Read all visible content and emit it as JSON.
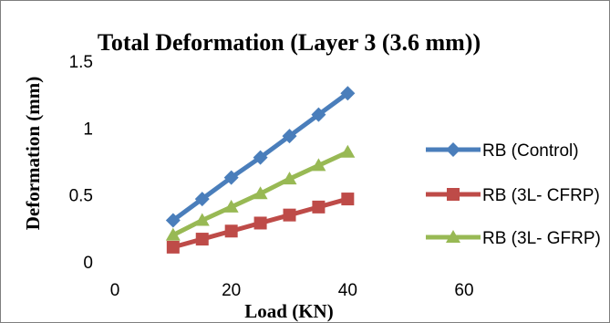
{
  "chart_data": {
    "type": "line",
    "title": "Total Deformation (Layer 3 (3.6 mm))",
    "xlabel": "Load (KN)",
    "ylabel": "Deformation (mm)",
    "xlim": [
      0,
      60
    ],
    "ylim": [
      0,
      1.5
    ],
    "x_ticks": [
      0,
      20,
      40,
      60
    ],
    "y_ticks": [
      0,
      0.5,
      1,
      1.5
    ],
    "x_tick_labels": [
      "0",
      "20",
      "40",
      "60"
    ],
    "y_tick_labels": [
      "0",
      "0.5",
      "1",
      "1.5"
    ],
    "grid": false,
    "legend_position": "right",
    "x": [
      10,
      15,
      20,
      25,
      30,
      35,
      40
    ],
    "series": [
      {
        "name": "RB (Control)",
        "color": "#4a7ebb",
        "marker": "diamond",
        "values": [
          0.31,
          0.47,
          0.63,
          0.78,
          0.94,
          1.1,
          1.26
        ]
      },
      {
        "name": "RB (3L- CFRP)",
        "color": "#be4b48",
        "marker": "square",
        "values": [
          0.11,
          0.17,
          0.23,
          0.29,
          0.35,
          0.41,
          0.47
        ]
      },
      {
        "name": "RB (3L- GFRP)",
        "color": "#98b954",
        "marker": "triangle",
        "values": [
          0.2,
          0.31,
          0.41,
          0.51,
          0.62,
          0.72,
          0.82
        ]
      }
    ]
  }
}
